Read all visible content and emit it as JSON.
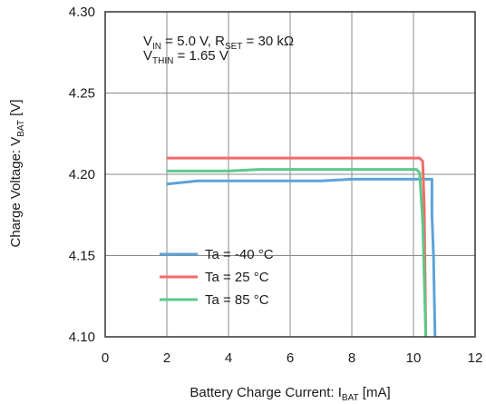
{
  "chart_data": {
    "type": "line",
    "xlabel": {
      "main": "Battery Charge Current: I",
      "sub": "BAT",
      "unit": " [mA]"
    },
    "ylabel": {
      "main": "Charge Voltage: V",
      "sub": "BAT",
      "unit": " [V]"
    },
    "xlim": [
      0,
      12
    ],
    "ylim": [
      4.1,
      4.3
    ],
    "x_ticks": [
      0,
      2,
      4,
      6,
      8,
      10,
      12
    ],
    "x_tick_labels": [
      "0",
      "2",
      "4",
      "6",
      "8",
      "10",
      "12"
    ],
    "y_ticks": [
      4.1,
      4.15,
      4.2,
      4.25,
      4.3
    ],
    "y_tick_labels": [
      "4.10",
      "4.15",
      "4.20",
      "4.25",
      "4.30"
    ],
    "grid": true,
    "annotations": {
      "line1": {
        "p1": "V",
        "s1": "IN",
        "p2": " = 5.0 V, R",
        "s2": "SET",
        "p3": " = 30 kΩ"
      },
      "line2": {
        "p1": "V",
        "s1": "THIN",
        "p2": " = 1.65 V"
      }
    },
    "legend_position": "bottom-left",
    "series": [
      {
        "name": "Ta =  -40 °C",
        "color": "#5ba3d9",
        "points": [
          [
            2.0,
            4.194
          ],
          [
            3.0,
            4.196
          ],
          [
            5.0,
            4.196
          ],
          [
            7.0,
            4.196
          ],
          [
            8.0,
            4.197
          ],
          [
            9.0,
            4.197
          ],
          [
            10.0,
            4.197
          ],
          [
            10.6,
            4.197
          ],
          [
            10.6,
            4.175
          ],
          [
            10.65,
            4.15
          ],
          [
            10.7,
            4.1
          ]
        ]
      },
      {
        "name": "Ta =  25 °C",
        "color": "#f26b6b",
        "points": [
          [
            2.0,
            4.21
          ],
          [
            4.0,
            4.21
          ],
          [
            6.0,
            4.21
          ],
          [
            8.0,
            4.21
          ],
          [
            10.2,
            4.21
          ],
          [
            10.3,
            4.208
          ],
          [
            10.35,
            4.18
          ],
          [
            10.4,
            4.1
          ]
        ]
      },
      {
        "name": "Ta =  85 °C",
        "color": "#5cc98a",
        "points": [
          [
            2.0,
            4.202
          ],
          [
            4.0,
            4.202
          ],
          [
            5.0,
            4.203
          ],
          [
            8.0,
            4.203
          ],
          [
            10.1,
            4.203
          ],
          [
            10.2,
            4.201
          ],
          [
            10.3,
            4.17
          ],
          [
            10.4,
            4.1
          ]
        ]
      }
    ]
  }
}
